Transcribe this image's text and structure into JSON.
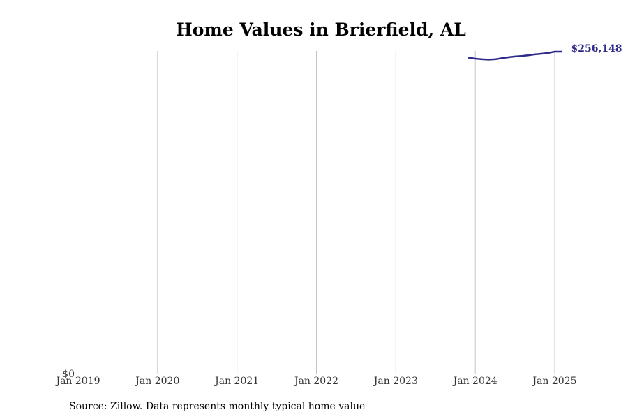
{
  "chart_data": {
    "type": "line",
    "title": "Home Values in Brierfield, AL",
    "xlabel": "",
    "ylabel": "",
    "x_tick_labels": [
      "Jan 2019",
      "Jan 2020",
      "Jan 2021",
      "Jan 2022",
      "Jan 2023",
      "Jan 2024",
      "Jan 2025"
    ],
    "y_tick_labels": [
      "$0"
    ],
    "xlim": [
      "2019-01",
      "2025-01"
    ],
    "ylim": [
      0,
      256148
    ],
    "grid": "vertical",
    "line_color": "#2e2a8a",
    "series": [
      {
        "values": [
          {
            "x": "2023-12",
            "y": 251400
          },
          {
            "x": "2024-01",
            "y": 250600
          },
          {
            "x": "2024-02",
            "y": 250100
          },
          {
            "x": "2024-03",
            "y": 249800
          },
          {
            "x": "2024-04",
            "y": 250100
          },
          {
            "x": "2024-05",
            "y": 251000
          },
          {
            "x": "2024-06",
            "y": 251700
          },
          {
            "x": "2024-07",
            "y": 252300
          },
          {
            "x": "2024-08",
            "y": 252700
          },
          {
            "x": "2024-09",
            "y": 253300
          },
          {
            "x": "2024-10",
            "y": 254000
          },
          {
            "x": "2024-11",
            "y": 254500
          },
          {
            "x": "2024-12",
            "y": 255100
          },
          {
            "x": "2025-01",
            "y": 256148
          },
          {
            "x": "2025-02",
            "y": 256148
          }
        ]
      }
    ],
    "annotations": [
      {
        "text": "$256,148",
        "x": "2025-02",
        "y": 256148
      }
    ],
    "source_note": "Source: Zillow. Data represents monthly typical home value"
  }
}
